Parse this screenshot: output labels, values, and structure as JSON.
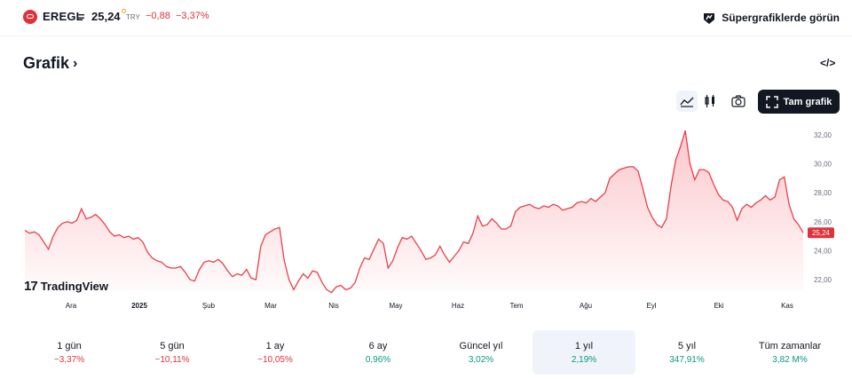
{
  "header": {
    "symbol": "EREGL",
    "separator": "=",
    "price": "25,24",
    "currency": "TRY",
    "change": "−0,88",
    "change_pct": "−3,37%",
    "supercharts_label": "Süpergrafiklerde görün"
  },
  "section": {
    "title": "Grafik",
    "embed_icon": "code-icon"
  },
  "toolbar": {
    "area_chart_icon": "area-chart-icon",
    "candles_icon": "candlestick-icon",
    "snapshot_icon": "camera-icon",
    "full_chart_label": "Tam grafik"
  },
  "branding": {
    "tradingview": "TradingView"
  },
  "colors": {
    "negative": "#e0323a",
    "positive": "#089981",
    "line": "#e8404c"
  },
  "chart_data": {
    "type": "area",
    "x_labels": [
      "Ara",
      "2025",
      "Şub",
      "Mar",
      "Nis",
      "May",
      "Haz",
      "Tem",
      "Ağu",
      "Eyl",
      "Eki",
      "Kas"
    ],
    "y_ticks": [
      "32,00",
      "30,00",
      "28,00",
      "26,00",
      "24,00",
      "22,00"
    ],
    "ylim": [
      21,
      33
    ],
    "last_value_label": "25,24",
    "series": [
      {
        "values": [
          25.4,
          25.2,
          25.3,
          25.1,
          24.6,
          24.1,
          25.0,
          25.6,
          25.9,
          26.0,
          25.9,
          26.1,
          26.9,
          26.2,
          26.3,
          26.5,
          26.2,
          25.8,
          25.3,
          25.0,
          25.1,
          24.9,
          25.0,
          24.8,
          24.9,
          24.6,
          23.9,
          23.5,
          23.3,
          23.2,
          22.9,
          22.8,
          22.8,
          22.9,
          22.5,
          22.0,
          21.9,
          22.7,
          23.2,
          23.3,
          23.2,
          23.4,
          23.1,
          22.6,
          22.2,
          22.4,
          22.3,
          22.7,
          22.1,
          22.0,
          24.3,
          25.1,
          25.3,
          25.5,
          25.6,
          23.3,
          22.0,
          21.3,
          21.9,
          22.4,
          22.1,
          22.6,
          22.5,
          21.8,
          21.3,
          21.1,
          21.5,
          21.6,
          21.3,
          21.4,
          21.8,
          22.8,
          23.5,
          23.4,
          24.1,
          24.8,
          24.5,
          22.8,
          23.3,
          24.2,
          24.9,
          24.8,
          25.0,
          24.5,
          24.0,
          23.4,
          23.5,
          23.7,
          24.3,
          23.7,
          23.2,
          23.6,
          24.0,
          24.6,
          24.5,
          25.2,
          26.4,
          25.7,
          25.8,
          26.2,
          25.9,
          25.5,
          25.5,
          25.7,
          26.7,
          27.0,
          27.1,
          27.2,
          27.0,
          26.9,
          27.1,
          27.0,
          27.2,
          27.1,
          26.8,
          26.9,
          27.0,
          27.3,
          27.4,
          27.3,
          27.6,
          27.4,
          27.7,
          28.0,
          29.0,
          29.3,
          29.6,
          29.7,
          29.8,
          29.8,
          29.5,
          28.3,
          27.0,
          26.3,
          25.8,
          25.6,
          26.2,
          28.5,
          30.3,
          31.2,
          32.3,
          30.0,
          28.9,
          29.6,
          29.6,
          29.4,
          28.6,
          27.9,
          27.5,
          27.4,
          27.0,
          26.1,
          26.9,
          27.2,
          27.0,
          27.3,
          27.5,
          27.8,
          27.5,
          27.7,
          28.9,
          29.1,
          27.2,
          26.2,
          25.8,
          25.24
        ]
      }
    ]
  },
  "periods": [
    {
      "label": "1 gün",
      "value": "−3,37%",
      "trend": "neg",
      "selected": false
    },
    {
      "label": "5 gün",
      "value": "−10,11%",
      "trend": "neg",
      "selected": false
    },
    {
      "label": "1 ay",
      "value": "−10,05%",
      "trend": "neg",
      "selected": false
    },
    {
      "label": "6 ay",
      "value": "0,96%",
      "trend": "pos",
      "selected": false
    },
    {
      "label": "Güncel yıl",
      "value": "3,02%",
      "trend": "pos",
      "selected": false
    },
    {
      "label": "1 yıl",
      "value": "2,19%",
      "trend": "pos",
      "selected": true
    },
    {
      "label": "5 yıl",
      "value": "347,91%",
      "trend": "pos",
      "selected": false
    },
    {
      "label": "Tüm zamanlar",
      "value": "3,82 M%",
      "trend": "pos",
      "selected": false
    }
  ]
}
